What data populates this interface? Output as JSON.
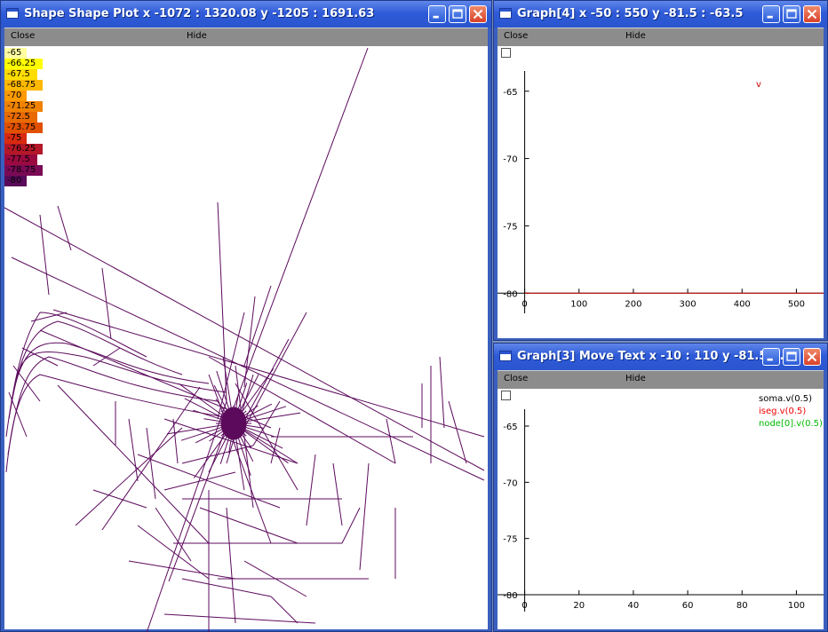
{
  "shape_window": {
    "title": "Shape Shape Plot x -1072 : 1320.08  y -1205 : 1691.63",
    "menu": {
      "close": "Close",
      "hide": "Hide"
    },
    "legend": [
      {
        "label": "-65",
        "color": "#ffffa0"
      },
      {
        "label": "-66.25",
        "color": "#ffff00"
      },
      {
        "label": "-67.5",
        "color": "#ffdd00"
      },
      {
        "label": "-68.75",
        "color": "#ffb800"
      },
      {
        "label": "-70",
        "color": "#ff9a00"
      },
      {
        "label": "-71.25",
        "color": "#f08200"
      },
      {
        "label": "-72.5",
        "color": "#e86a00"
      },
      {
        "label": "-73.75",
        "color": "#e05000"
      },
      {
        "label": "-75",
        "color": "#d82a10"
      },
      {
        "label": "-76.25",
        "color": "#b41828"
      },
      {
        "label": "-77.5",
        "color": "#9a0a40"
      },
      {
        "label": "-78.75",
        "color": "#7a0a55"
      },
      {
        "label": "-80",
        "color": "#5a0a5a"
      }
    ],
    "trace_color": "#5c0a5c"
  },
  "graph4": {
    "title": "Graph[4]  x -50 : 550  y -81.5 : -63.5",
    "menu": {
      "close": "Close",
      "hide": "Hide"
    },
    "chart_data": {
      "type": "line",
      "title": "",
      "xlabel": "",
      "ylabel": "",
      "xlim": [
        -50,
        550
      ],
      "ylim": [
        -81.5,
        -63.5
      ],
      "x_ticks": [
        "0",
        "100",
        "200",
        "300",
        "400",
        "500"
      ],
      "y_ticks": [
        "-65",
        "-70",
        "-75",
        "-80"
      ],
      "series": [
        {
          "name": "v",
          "color": "#cc0000",
          "x": [
            0,
            550
          ],
          "values": [
            -80,
            -80
          ]
        }
      ]
    }
  },
  "graph3": {
    "title": "Graph[3] Move Text x -10 : 110  y -81.5 : ...",
    "menu": {
      "close": "Close",
      "hide": "Hide"
    },
    "chart_data": {
      "type": "line",
      "title": "",
      "xlabel": "",
      "ylabel": "",
      "xlim": [
        -10,
        110
      ],
      "ylim": [
        -81.5,
        -63.5
      ],
      "x_ticks": [
        "0",
        "20",
        "40",
        "60",
        "80",
        "100"
      ],
      "y_ticks": [
        "-65",
        "-70",
        "-75",
        "-80"
      ],
      "series": [
        {
          "name": "soma.v(0.5)",
          "color": "#000000",
          "values": []
        },
        {
          "name": "iseg.v(0.5)",
          "color": "#ee0000",
          "values": []
        },
        {
          "name": "node[0].v(0.5)",
          "color": "#00bb00",
          "values": []
        }
      ]
    }
  }
}
